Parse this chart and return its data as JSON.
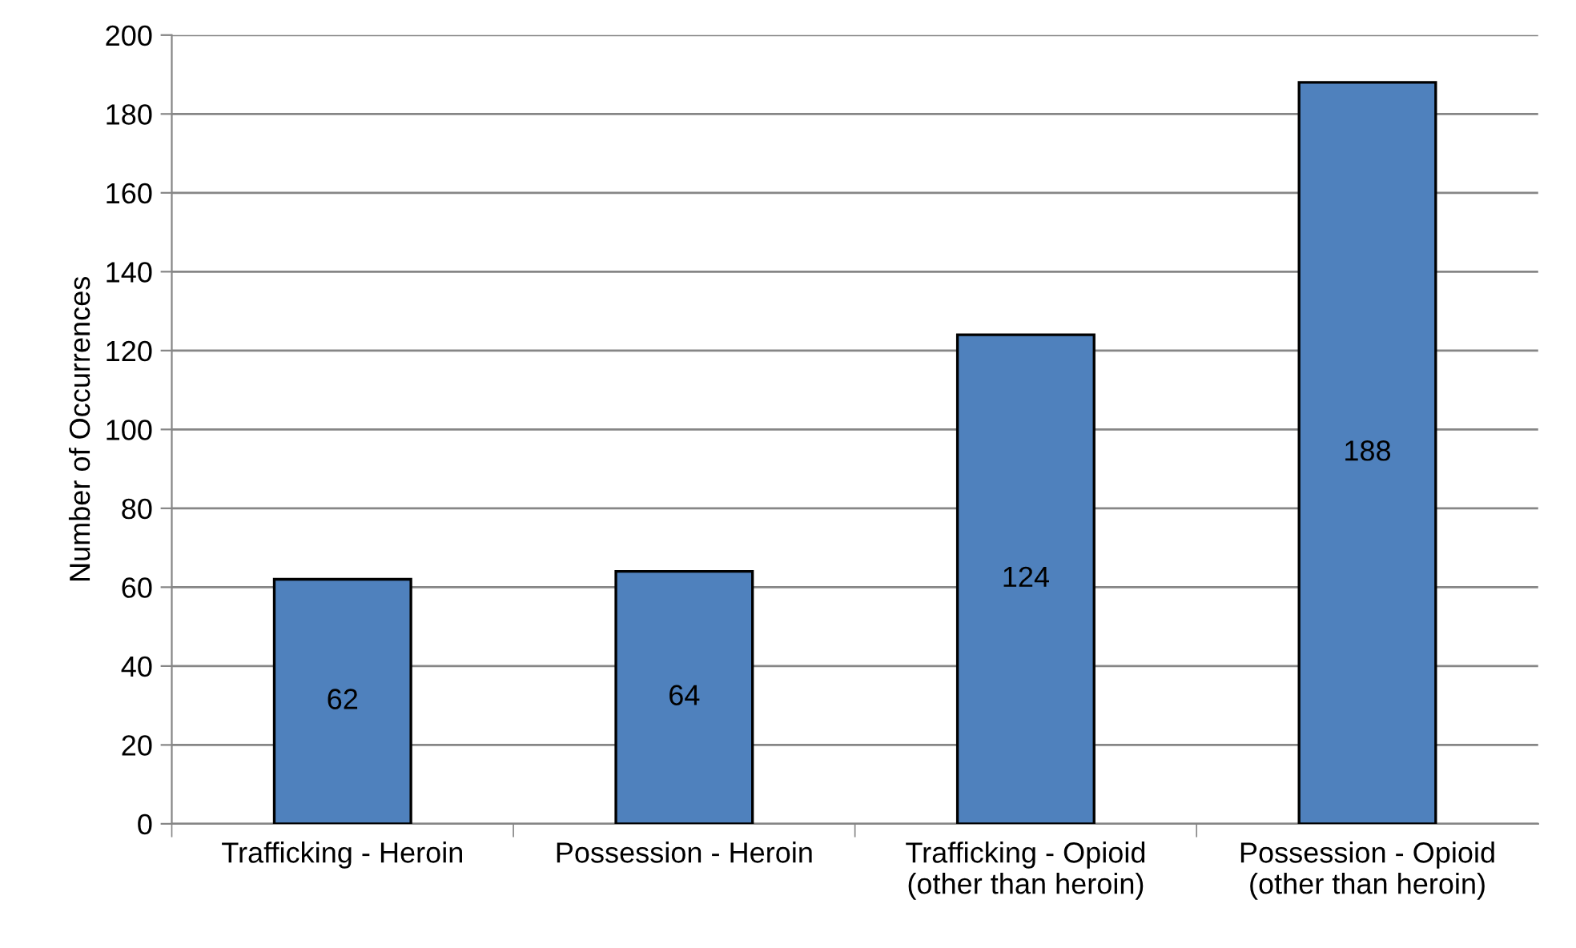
{
  "chart_data": {
    "type": "bar",
    "ylabel": "Number of Occurrences",
    "categories": [
      "Trafficking - Heroin",
      "Possession - Heroin",
      "Trafficking - Opioid\n(other than heroin)",
      "Possession - Opioid\n(other than heroin)"
    ],
    "values": [
      62,
      64,
      124,
      188
    ],
    "color": "#4f81bd",
    "ylim": [
      0,
      200
    ],
    "yticks": [
      0,
      20,
      40,
      60,
      80,
      100,
      120,
      140,
      160,
      180,
      200
    ],
    "grid": "y",
    "data_labels": true,
    "legend": false
  }
}
